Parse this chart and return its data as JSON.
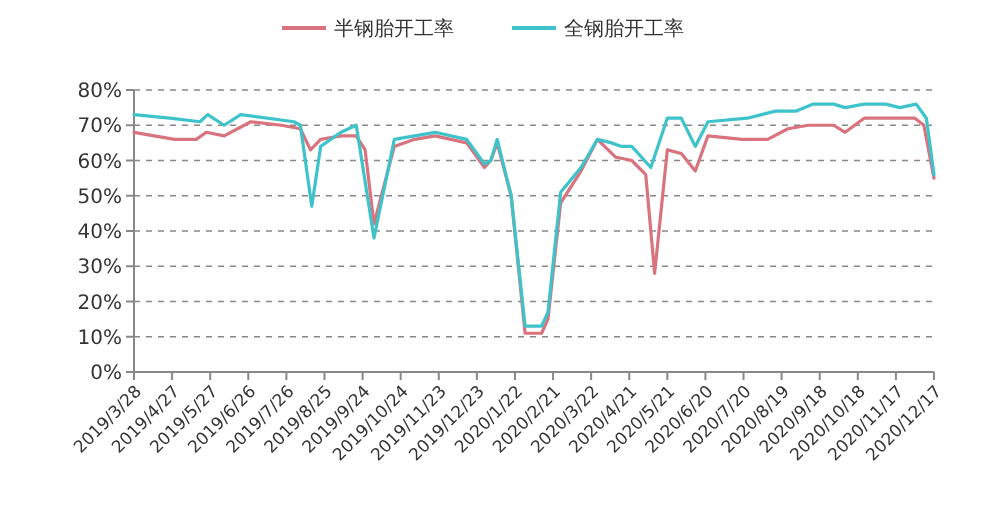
{
  "chart_data": {
    "type": "line",
    "legend": "top",
    "grid": "y",
    "line_style": "solid",
    "marker": "none",
    "xlim": [
      "2019-03-28",
      "2020-12-17"
    ],
    "xticks": [
      {
        "value": "2019-03-28",
        "label": "2019/3/28"
      },
      {
        "value": "2019-04-27",
        "label": "2019/4/27"
      },
      {
        "value": "2019-05-27",
        "label": "2019/5/27"
      },
      {
        "value": "2019-06-26",
        "label": "2019/6/26"
      },
      {
        "value": "2019-07-26",
        "label": "2019/7/26"
      },
      {
        "value": "2019-08-25",
        "label": "2019/8/25"
      },
      {
        "value": "2019-09-24",
        "label": "2019/9/24"
      },
      {
        "value": "2019-10-24",
        "label": "2019/10/24"
      },
      {
        "value": "2019-11-23",
        "label": "2019/11/23"
      },
      {
        "value": "2019-12-23",
        "label": "2019/12/23"
      },
      {
        "value": "2020-01-22",
        "label": "2020/1/22"
      },
      {
        "value": "2020-02-21",
        "label": "2020/2/21"
      },
      {
        "value": "2020-03-22",
        "label": "2020/3/22"
      },
      {
        "value": "2020-04-21",
        "label": "2020/4/21"
      },
      {
        "value": "2020-05-21",
        "label": "2020/5/21"
      },
      {
        "value": "2020-06-20",
        "label": "2020/6/20"
      },
      {
        "value": "2020-07-20",
        "label": "2020/7/20"
      },
      {
        "value": "2020-08-19",
        "label": "2020/8/19"
      },
      {
        "value": "2020-09-18",
        "label": "2020/9/18"
      },
      {
        "value": "2020-10-18",
        "label": "2020/10/18"
      },
      {
        "value": "2020-11-17",
        "label": "2020/11/17"
      },
      {
        "value": "2020-12-17",
        "label": "2020/12/17"
      }
    ],
    "ylim": [
      0,
      80
    ],
    "yticks": [
      {
        "value": 0,
        "label": "0%"
      },
      {
        "value": 10,
        "label": "10%"
      },
      {
        "value": 20,
        "label": "20%"
      },
      {
        "value": 30,
        "label": "30%"
      },
      {
        "value": 40,
        "label": "40%"
      },
      {
        "value": 50,
        "label": "50%"
      },
      {
        "value": 60,
        "label": "60%"
      },
      {
        "value": 70,
        "label": "70%"
      },
      {
        "value": 80,
        "label": "80%"
      }
    ],
    "series": [
      {
        "name": "半钢胎开工率",
        "color": "#d9737e",
        "x": [
          "2019-03-28",
          "2019-04-29",
          "2019-05-16",
          "2019-05-24",
          "2019-06-07",
          "2019-06-28",
          "2019-07-22",
          "2019-08-06",
          "2019-08-14",
          "2019-08-22",
          "2019-09-07",
          "2019-09-19",
          "2019-09-26",
          "2019-10-03",
          "2019-10-19",
          "2019-11-04",
          "2019-11-20",
          "2019-12-15",
          "2019-12-29",
          "2020-01-03",
          "2020-01-08",
          "2020-01-19",
          "2020-01-30",
          "2020-02-12",
          "2020-02-17",
          "2020-02-27",
          "2020-03-14",
          "2020-03-27",
          "2020-04-10",
          "2020-04-23",
          "2020-05-04",
          "2020-05-11",
          "2020-05-21",
          "2020-06-01",
          "2020-06-12",
          "2020-06-22",
          "2020-07-19",
          "2020-08-08",
          "2020-08-24",
          "2020-09-09",
          "2020-09-29",
          "2020-10-08",
          "2020-10-23",
          "2020-12-02",
          "2020-12-09",
          "2020-12-17"
        ],
        "values": [
          68,
          66,
          66,
          68,
          67,
          71,
          70,
          69,
          63,
          66,
          67,
          67,
          63,
          42,
          64,
          66,
          67,
          65,
          58,
          60,
          65,
          50,
          11,
          11,
          15,
          48,
          57,
          66,
          61,
          60,
          56,
          28,
          63,
          62,
          57,
          67,
          66,
          66,
          69,
          70,
          70,
          68,
          72,
          72,
          70,
          55
        ]
      },
      {
        "name": "全钢胎开工率",
        "color": "#3ec3cb",
        "x": [
          "2019-03-28",
          "2019-04-25",
          "2019-05-19",
          "2019-05-25",
          "2019-06-07",
          "2019-06-20",
          "2019-08-01",
          "2019-08-06",
          "2019-08-15",
          "2019-08-22",
          "2019-09-07",
          "2019-09-19",
          "2019-10-03",
          "2019-10-19",
          "2019-11-04",
          "2019-11-20",
          "2019-12-15",
          "2019-12-29",
          "2020-01-03",
          "2020-01-08",
          "2020-01-19",
          "2020-01-30",
          "2020-02-12",
          "2020-02-17",
          "2020-02-27",
          "2020-03-14",
          "2020-03-27",
          "2020-04-07",
          "2020-04-15",
          "2020-04-23",
          "2020-05-08",
          "2020-05-21",
          "2020-06-01",
          "2020-06-12",
          "2020-06-22",
          "2020-07-23",
          "2020-08-14",
          "2020-08-30",
          "2020-09-13",
          "2020-09-29",
          "2020-10-08",
          "2020-10-23",
          "2020-11-09",
          "2020-11-20",
          "2020-12-03",
          "2020-12-11",
          "2020-12-17"
        ],
        "values": [
          73,
          72,
          71,
          73,
          70,
          73,
          71,
          70,
          47,
          64,
          68,
          70,
          38,
          66,
          67,
          68,
          66,
          59,
          60,
          66,
          50,
          13,
          13,
          17,
          51,
          58,
          66,
          65,
          64,
          64,
          58,
          72,
          72,
          64,
          71,
          72,
          74,
          74,
          76,
          76,
          75,
          76,
          76,
          75,
          76,
          72,
          56
        ]
      }
    ]
  }
}
